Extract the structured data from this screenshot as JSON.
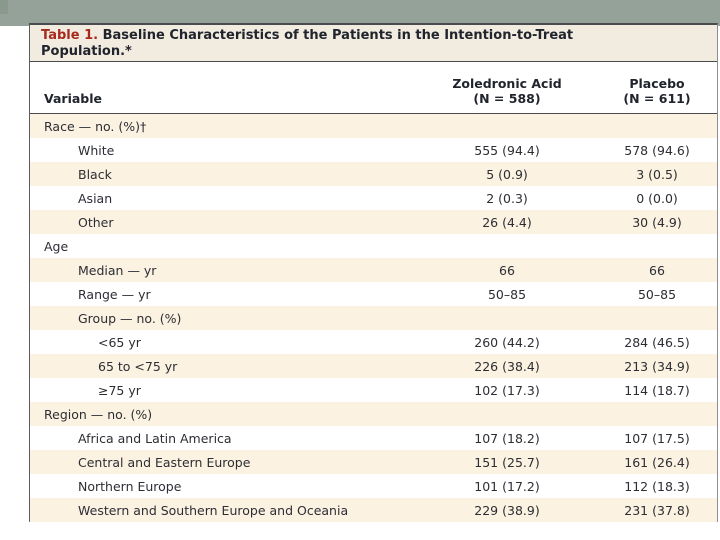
{
  "colors": {
    "band_gray": "#95A299",
    "stripe_cream": "#FBF2E1",
    "title_block_cream": "#F2ECE0",
    "accent_red": "#A8281E",
    "text_dark": "#2C2E34"
  },
  "table": {
    "title_label": "Table 1.",
    "title_text": "Baseline Characteristics of the Patients in the Intention-to-Treat Population.*",
    "columns": {
      "variable": "Variable",
      "group1_name": "Zoledronic Acid",
      "group1_n": "(N = 588)",
      "group2_name": "Placebo",
      "group2_n": "(N = 611)"
    },
    "rows": [
      {
        "label": "Race — no. (%)†",
        "v1": "",
        "v2": ""
      },
      {
        "label": "White",
        "v1": "555 (94.4)",
        "v2": "578 (94.6)"
      },
      {
        "label": "Black",
        "v1": "5 (0.9)",
        "v2": "3 (0.5)"
      },
      {
        "label": "Asian",
        "v1": "2 (0.3)",
        "v2": "0 (0.0)"
      },
      {
        "label": "Other",
        "v1": "26 (4.4)",
        "v2": "30 (4.9)"
      },
      {
        "label": "Age",
        "v1": "",
        "v2": ""
      },
      {
        "label": "Median — yr",
        "v1": "66",
        "v2": "66"
      },
      {
        "label": "Range — yr",
        "v1": "50–85",
        "v2": "50–85"
      },
      {
        "label": "Group — no. (%)",
        "v1": "",
        "v2": ""
      },
      {
        "label": "<65 yr",
        "v1": "260 (44.2)",
        "v2": "284 (46.5)"
      },
      {
        "label": "65 to <75 yr",
        "v1": "226 (38.4)",
        "v2": "213 (34.9)"
      },
      {
        "label": "≥75 yr",
        "v1": "102 (17.3)",
        "v2": "114 (18.7)"
      },
      {
        "label": "Region — no. (%)",
        "v1": "",
        "v2": ""
      },
      {
        "label": "Africa and Latin America",
        "v1": "107 (18.2)",
        "v2": "107 (17.5)"
      },
      {
        "label": "Central and Eastern Europe",
        "v1": "151 (25.7)",
        "v2": "161 (26.4)"
      },
      {
        "label": "Northern Europe",
        "v1": "101 (17.2)",
        "v2": "112 (18.3)"
      },
      {
        "label": "Western and Southern Europe and Oceania",
        "v1": "229 (38.9)",
        "v2": "231 (37.8)"
      }
    ]
  }
}
